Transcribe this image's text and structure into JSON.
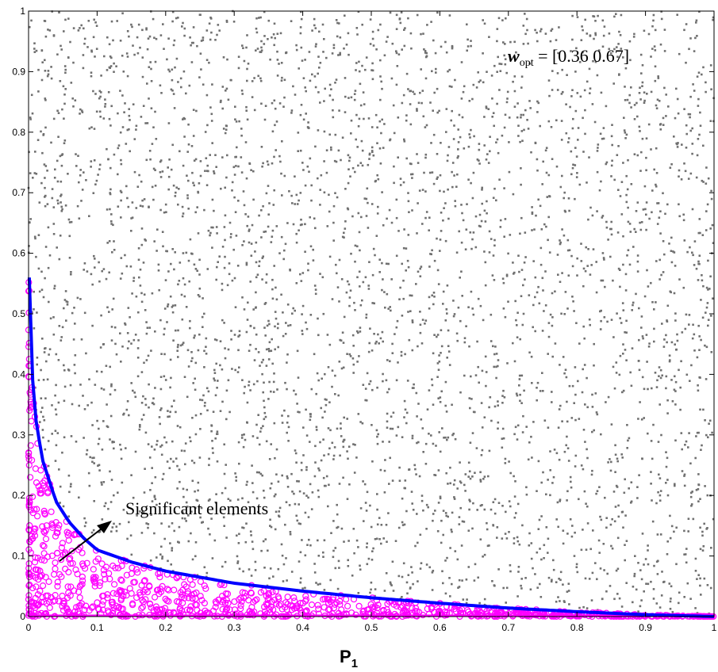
{
  "chart_data": {
    "type": "scatter",
    "title": "",
    "xlabel_main": "P",
    "xlabel_sub": "1",
    "ylabel": "",
    "xlim": [
      0,
      1
    ],
    "ylim": [
      0,
      1
    ],
    "x_ticks": [
      "0",
      "0.1",
      "0.2",
      "0.3",
      "0.4",
      "0.5",
      "0.6",
      "0.7",
      "0.8",
      "0.9",
      "1"
    ],
    "y_ticks": [
      "0",
      "0.1",
      "0.2",
      "0.3",
      "0.4",
      "0.5",
      "0.6",
      "0.7",
      "0.8",
      "0.9",
      "1"
    ],
    "grid": false,
    "series": [
      {
        "role": "all-elements",
        "marker": "dot",
        "color": "#707070",
        "count": 4200
      },
      {
        "role": "significant-elements",
        "marker": "circle",
        "color": "#ff00ff",
        "count": 1000
      }
    ],
    "boundary": {
      "color": "#0000ff",
      "points": [
        [
          0.001,
          0.56
        ],
        [
          0.004,
          0.42
        ],
        [
          0.01,
          0.33
        ],
        [
          0.02,
          0.26
        ],
        [
          0.04,
          0.19
        ],
        [
          0.06,
          0.155
        ],
        [
          0.08,
          0.13
        ],
        [
          0.1,
          0.11
        ],
        [
          0.15,
          0.09
        ],
        [
          0.2,
          0.075
        ],
        [
          0.3,
          0.055
        ],
        [
          0.4,
          0.042
        ],
        [
          0.5,
          0.031
        ],
        [
          0.6,
          0.022
        ],
        [
          0.7,
          0.014
        ],
        [
          0.8,
          0.008
        ],
        [
          0.9,
          0.003
        ],
        [
          1.0,
          0.0
        ]
      ]
    },
    "annotations": [
      {
        "id": "wopt",
        "prefix": "w",
        "sub": "opt",
        "text": " = [0.36  0.67]"
      },
      {
        "id": "significant",
        "text": "Significant elements"
      }
    ],
    "colors": {
      "axis": "#000000",
      "background": "#ffffff"
    }
  }
}
